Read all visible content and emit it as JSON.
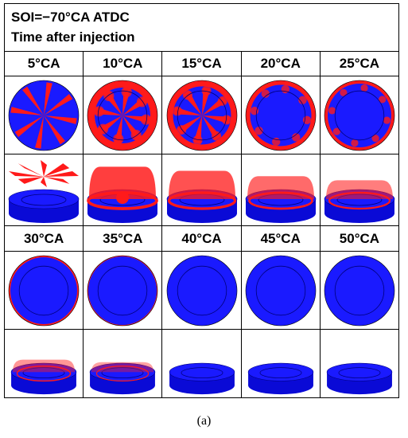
{
  "header": {
    "line1": "SOI=−70°CA ATDC",
    "line2": "Time after injection"
  },
  "caption": "(a)",
  "colors": {
    "fuel": "#ff1a1a",
    "chamber": "#1a1aff",
    "outline": "#000000"
  },
  "groups": [
    {
      "labels": [
        "5°CA",
        "10°CA",
        "15°CA",
        "20°CA",
        "25°CA"
      ],
      "spray_level": [
        1.0,
        0.9,
        0.75,
        0.55,
        0.4
      ]
    },
    {
      "labels": [
        "30°CA",
        "35°CA",
        "40°CA",
        "45°CA",
        "50°CA"
      ],
      "spray_level": [
        0.2,
        0.1,
        0.0,
        0.0,
        0.0
      ]
    }
  ]
}
